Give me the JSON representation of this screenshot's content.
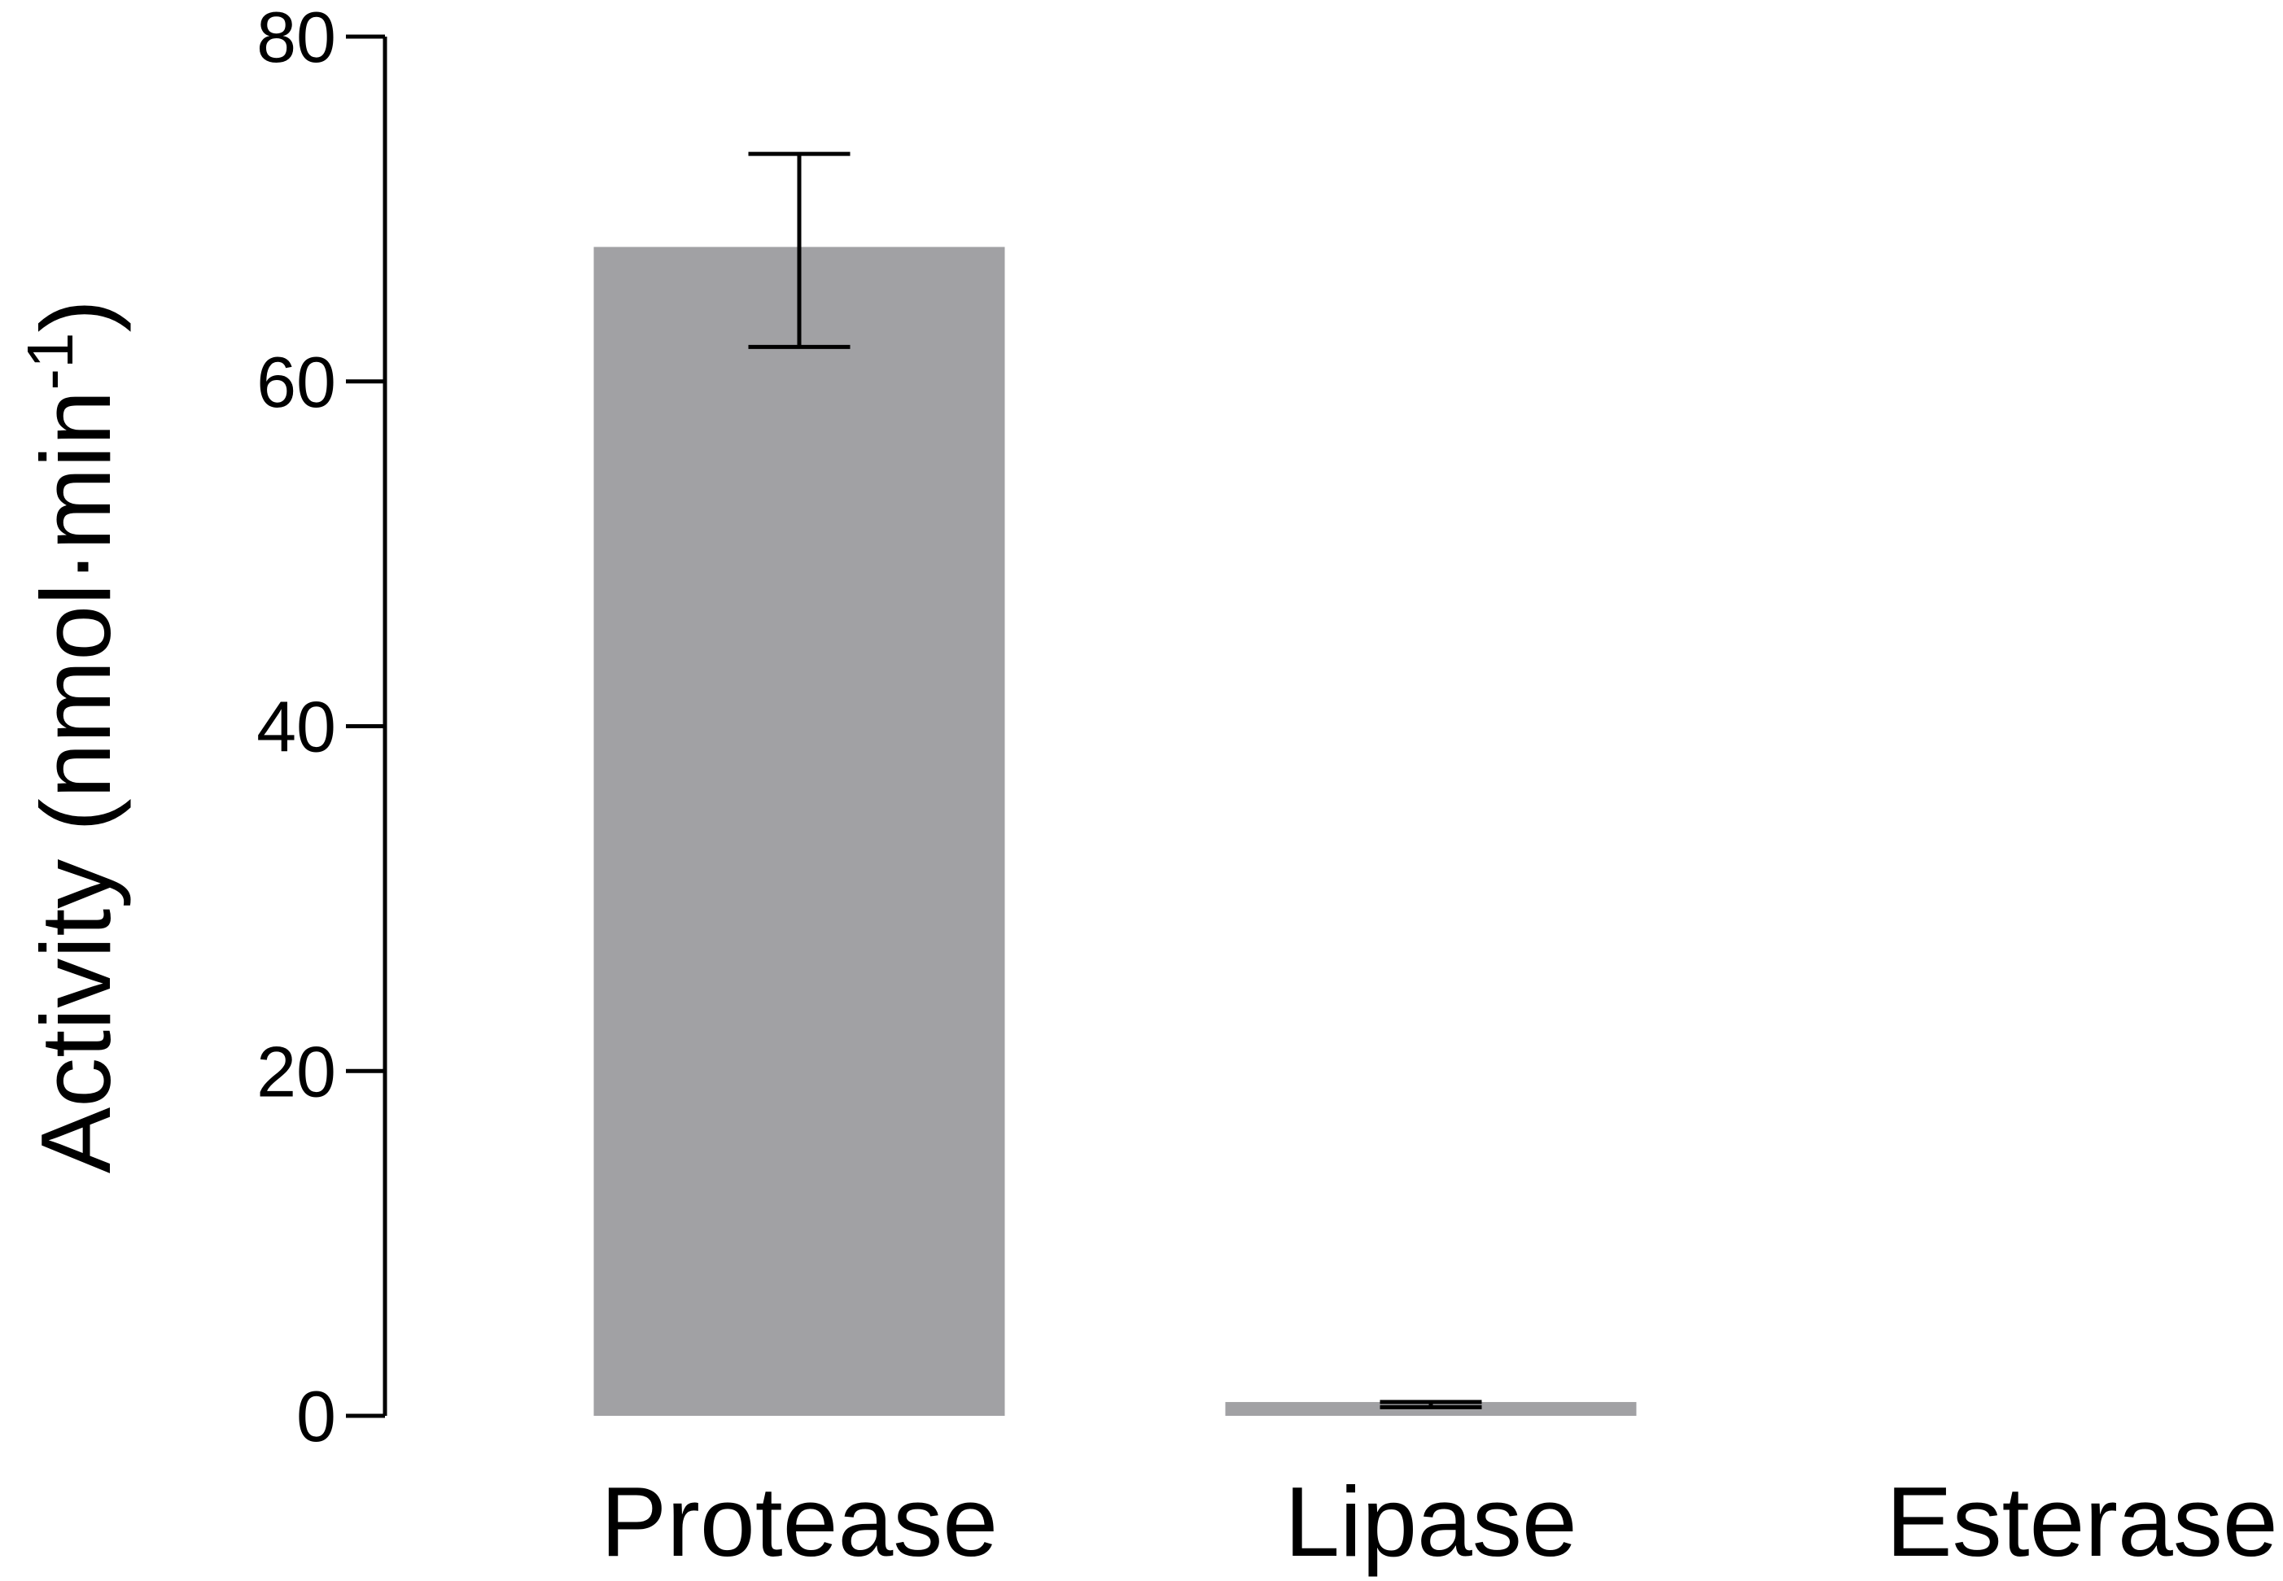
{
  "chart_data": {
    "type": "bar",
    "title": "",
    "xlabel": "",
    "ylabel_main": "Activity (nmol·min",
    "ylabel_sup": "-1",
    "ylabel_close": ")",
    "ylim": [
      0,
      80
    ],
    "yticks": [
      "0",
      "20",
      "40",
      "60",
      "80"
    ],
    "yticks_values": [
      0,
      20,
      40,
      60,
      80
    ],
    "grid": false,
    "legend": "none",
    "categories": [
      "Protease",
      "Lipase",
      "Esterase"
    ],
    "values": [
      67.8,
      0.8,
      0
    ],
    "error_high": [
      73.2,
      0.8,
      0
    ],
    "error_low": [
      62.0,
      0.5,
      0
    ],
    "colors": {
      "bar": "#a1a1a4",
      "axis": "#000000"
    }
  }
}
